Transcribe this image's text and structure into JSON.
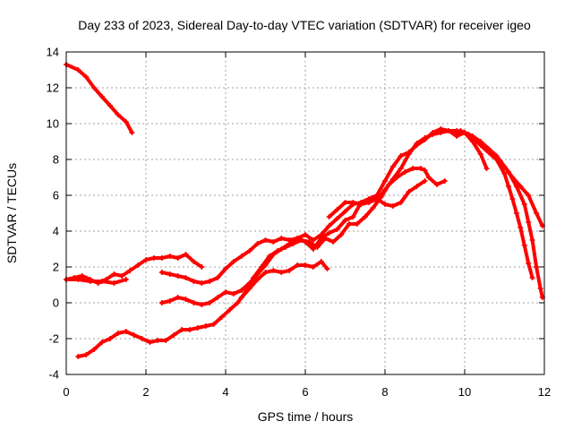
{
  "chart_data": {
    "type": "line",
    "title": "Day 233 of 2023, Sidereal Day-to-day VTEC variation (SDTVAR) for receiver igeo",
    "xlabel": "GPS time / hours",
    "ylabel": "SDTVAR / TECUs",
    "xlim": [
      0,
      12
    ],
    "ylim": [
      -4,
      14
    ],
    "xticks": [
      0,
      2,
      4,
      6,
      8,
      10,
      12
    ],
    "yticks": [
      -4,
      -2,
      0,
      2,
      4,
      6,
      8,
      10,
      12,
      14
    ],
    "grid": true,
    "marker": "plus",
    "color": "#ff0000",
    "series": [
      {
        "name": "s1",
        "points": [
          [
            0.0,
            13.3
          ],
          [
            0.3,
            13.0
          ],
          [
            0.5,
            12.6
          ],
          [
            0.7,
            12.0
          ],
          [
            0.9,
            11.5
          ],
          [
            1.1,
            11.0
          ],
          [
            1.3,
            10.5
          ],
          [
            1.5,
            10.1
          ],
          [
            1.65,
            9.5
          ]
        ]
      },
      {
        "name": "s2",
        "points": [
          [
            0.0,
            1.3
          ],
          [
            0.2,
            1.4
          ],
          [
            0.4,
            1.5
          ],
          [
            0.6,
            1.3
          ],
          [
            0.8,
            1.1
          ],
          [
            1.0,
            1.3
          ],
          [
            1.2,
            1.6
          ],
          [
            1.4,
            1.5
          ],
          [
            1.6,
            1.8
          ],
          [
            1.8,
            2.1
          ],
          [
            2.0,
            2.4
          ],
          [
            2.2,
            2.5
          ],
          [
            2.4,
            2.5
          ],
          [
            2.6,
            2.6
          ],
          [
            2.8,
            2.5
          ],
          [
            3.0,
            2.7
          ],
          [
            3.2,
            2.3
          ],
          [
            3.4,
            2.0
          ]
        ]
      },
      {
        "name": "s3",
        "points": [
          [
            0.0,
            1.3
          ],
          [
            0.3,
            1.3
          ],
          [
            0.6,
            1.2
          ],
          [
            0.9,
            1.2
          ],
          [
            1.2,
            1.1
          ],
          [
            1.5,
            1.3
          ]
        ]
      },
      {
        "name": "s4",
        "points": [
          [
            0.3,
            -3.0
          ],
          [
            0.5,
            -2.9
          ],
          [
            0.7,
            -2.6
          ],
          [
            0.9,
            -2.2
          ],
          [
            1.1,
            -2.0
          ],
          [
            1.3,
            -1.7
          ],
          [
            1.5,
            -1.6
          ],
          [
            1.7,
            -1.8
          ],
          [
            1.9,
            -2.0
          ],
          [
            2.1,
            -2.2
          ],
          [
            2.3,
            -2.1
          ],
          [
            2.5,
            -2.1
          ],
          [
            2.7,
            -1.8
          ],
          [
            2.9,
            -1.5
          ],
          [
            3.1,
            -1.5
          ],
          [
            3.3,
            -1.4
          ],
          [
            3.5,
            -1.3
          ],
          [
            3.7,
            -1.2
          ],
          [
            3.9,
            -0.8
          ],
          [
            4.1,
            -0.4
          ],
          [
            4.3,
            0.0
          ],
          [
            4.5,
            0.6
          ],
          [
            4.7,
            1.4
          ],
          [
            4.9,
            2.0
          ],
          [
            5.1,
            2.6
          ],
          [
            5.3,
            2.9
          ],
          [
            5.5,
            3.1
          ],
          [
            5.7,
            3.3
          ],
          [
            5.9,
            3.5
          ],
          [
            6.1,
            3.4
          ],
          [
            6.3,
            3.1
          ],
          [
            6.5,
            3.6
          ],
          [
            6.7,
            3.4
          ],
          [
            6.9,
            3.8
          ],
          [
            7.1,
            4.4
          ],
          [
            7.3,
            4.4
          ],
          [
            7.5,
            4.8
          ],
          [
            7.7,
            5.3
          ],
          [
            7.9,
            5.9
          ],
          [
            8.1,
            6.6
          ],
          [
            8.3,
            7.0
          ],
          [
            8.5,
            7.3
          ],
          [
            8.7,
            7.5
          ],
          [
            8.9,
            7.5
          ],
          [
            9.0,
            7.4
          ],
          [
            9.1,
            7.0
          ],
          [
            9.3,
            6.6
          ],
          [
            9.5,
            6.8
          ]
        ]
      },
      {
        "name": "s5",
        "points": [
          [
            2.4,
            1.7
          ],
          [
            2.6,
            1.6
          ],
          [
            2.8,
            1.5
          ],
          [
            3.0,
            1.4
          ],
          [
            3.2,
            1.2
          ],
          [
            3.4,
            1.1
          ],
          [
            3.6,
            1.2
          ],
          [
            3.8,
            1.4
          ],
          [
            4.0,
            1.9
          ],
          [
            4.2,
            2.3
          ],
          [
            4.4,
            2.6
          ],
          [
            4.6,
            2.9
          ],
          [
            4.8,
            3.3
          ],
          [
            5.0,
            3.5
          ],
          [
            5.2,
            3.4
          ],
          [
            5.4,
            3.6
          ],
          [
            5.6,
            3.5
          ],
          [
            5.8,
            3.6
          ],
          [
            6.0,
            3.4
          ],
          [
            6.2,
            3.0
          ],
          [
            6.4,
            3.6
          ],
          [
            6.6,
            3.9
          ],
          [
            6.8,
            4.1
          ],
          [
            7.0,
            4.6
          ],
          [
            7.2,
            4.8
          ],
          [
            7.4,
            5.6
          ],
          [
            7.6,
            5.8
          ],
          [
            7.8,
            6.0
          ],
          [
            8.0,
            6.8
          ],
          [
            8.2,
            7.6
          ],
          [
            8.4,
            8.2
          ],
          [
            8.6,
            8.4
          ],
          [
            8.8,
            8.8
          ],
          [
            9.0,
            9.1
          ],
          [
            9.2,
            9.5
          ],
          [
            9.4,
            9.7
          ],
          [
            9.6,
            9.6
          ],
          [
            9.8,
            9.3
          ],
          [
            10.0,
            9.5
          ],
          [
            10.2,
            9.0
          ],
          [
            10.4,
            8.3
          ],
          [
            10.55,
            7.5
          ]
        ]
      },
      {
        "name": "s6",
        "points": [
          [
            2.4,
            0.0
          ],
          [
            2.6,
            0.1
          ],
          [
            2.8,
            0.3
          ],
          [
            3.0,
            0.2
          ],
          [
            3.2,
            0.0
          ],
          [
            3.4,
            -0.1
          ],
          [
            3.6,
            0.0
          ],
          [
            3.8,
            0.3
          ],
          [
            4.0,
            0.6
          ],
          [
            4.2,
            0.5
          ],
          [
            4.4,
            0.7
          ],
          [
            4.6,
            1.1
          ],
          [
            4.8,
            1.6
          ],
          [
            5.0,
            2.1
          ],
          [
            5.2,
            2.7
          ],
          [
            5.4,
            3.0
          ],
          [
            5.6,
            3.3
          ],
          [
            5.8,
            3.6
          ],
          [
            6.0,
            3.8
          ],
          [
            6.2,
            3.5
          ],
          [
            6.4,
            3.8
          ],
          [
            6.6,
            4.3
          ],
          [
            6.8,
            4.7
          ],
          [
            7.0,
            5.1
          ],
          [
            7.2,
            5.5
          ],
          [
            7.4,
            5.6
          ],
          [
            7.6,
            5.8
          ],
          [
            7.8,
            5.7
          ],
          [
            8.0,
            6.3
          ],
          [
            8.2,
            6.9
          ],
          [
            8.4,
            7.5
          ],
          [
            8.6,
            8.3
          ],
          [
            8.8,
            8.9
          ],
          [
            9.0,
            9.2
          ],
          [
            9.2,
            9.4
          ],
          [
            9.4,
            9.5
          ],
          [
            9.6,
            9.6
          ],
          [
            9.8,
            9.6
          ],
          [
            10.0,
            9.5
          ],
          [
            10.2,
            9.3
          ],
          [
            10.4,
            9.0
          ],
          [
            10.6,
            8.6
          ],
          [
            10.8,
            8.2
          ],
          [
            11.0,
            7.6
          ],
          [
            11.2,
            7.0
          ],
          [
            11.4,
            6.5
          ],
          [
            11.6,
            6.0
          ],
          [
            11.8,
            5.0
          ],
          [
            11.95,
            4.3
          ]
        ]
      },
      {
        "name": "s7",
        "points": [
          [
            4.4,
            0.3
          ],
          [
            4.6,
            0.8
          ],
          [
            4.8,
            1.3
          ],
          [
            5.0,
            1.7
          ],
          [
            5.2,
            1.8
          ],
          [
            5.4,
            1.7
          ],
          [
            5.6,
            1.8
          ],
          [
            5.8,
            2.1
          ],
          [
            6.0,
            2.1
          ],
          [
            6.2,
            2.0
          ],
          [
            6.4,
            2.3
          ],
          [
            6.55,
            1.9
          ]
        ]
      },
      {
        "name": "s8",
        "points": [
          [
            6.6,
            4.8
          ],
          [
            6.8,
            5.2
          ],
          [
            7.0,
            5.6
          ],
          [
            7.2,
            5.6
          ],
          [
            7.4,
            5.5
          ],
          [
            7.6,
            5.6
          ],
          [
            7.8,
            5.8
          ],
          [
            8.0,
            5.5
          ],
          [
            8.2,
            5.4
          ],
          [
            8.4,
            5.6
          ],
          [
            8.6,
            6.2
          ],
          [
            8.8,
            6.5
          ],
          [
            9.0,
            6.8
          ]
        ]
      },
      {
        "name": "s9",
        "points": [
          [
            9.7,
            9.5
          ],
          [
            9.9,
            9.6
          ],
          [
            10.1,
            9.4
          ],
          [
            10.3,
            9.0
          ],
          [
            10.5,
            8.6
          ],
          [
            10.7,
            8.2
          ],
          [
            10.9,
            7.9
          ],
          [
            11.1,
            7.3
          ],
          [
            11.3,
            6.5
          ],
          [
            11.5,
            5.5
          ],
          [
            11.6,
            4.5
          ],
          [
            11.7,
            3.5
          ],
          [
            11.8,
            2.0
          ],
          [
            11.9,
            0.8
          ],
          [
            11.95,
            0.3
          ]
        ]
      },
      {
        "name": "s10",
        "points": [
          [
            9.8,
            9.4
          ],
          [
            10.0,
            9.5
          ],
          [
            10.2,
            9.2
          ],
          [
            10.4,
            8.8
          ],
          [
            10.6,
            8.4
          ],
          [
            10.8,
            8.0
          ],
          [
            11.0,
            7.2
          ],
          [
            11.1,
            6.5
          ],
          [
            11.2,
            5.8
          ],
          [
            11.3,
            5.0
          ],
          [
            11.4,
            4.2
          ],
          [
            11.5,
            3.2
          ],
          [
            11.6,
            2.2
          ],
          [
            11.7,
            1.4
          ]
        ]
      }
    ]
  }
}
